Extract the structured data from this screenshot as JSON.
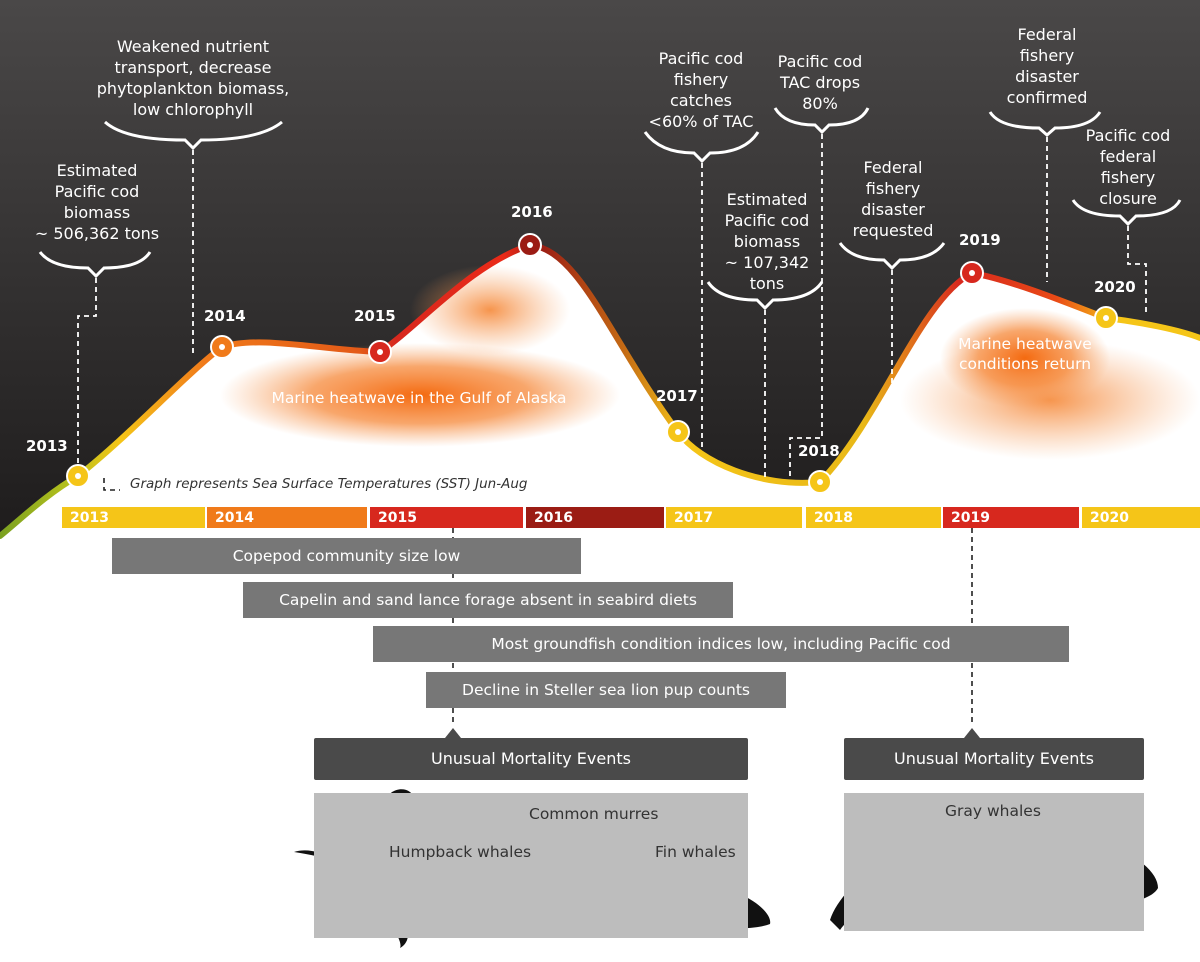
{
  "annotations": {
    "cod_biomass_2013": [
      "Estimated",
      "Pacific cod",
      "biomass",
      "~ 506,362 tons"
    ],
    "nutrient": [
      "Weakened nutrient",
      "transport, decrease",
      "phytoplankton biomass,",
      "low chlorophyll"
    ],
    "catches": [
      "Pacific cod",
      "fishery",
      "catches",
      "<60% of TAC"
    ],
    "tac_drop": [
      "Pacific cod",
      "TAC drops",
      "80%"
    ],
    "cod_biomass_2017": [
      "Estimated",
      "Pacific cod",
      "biomass",
      "~ 107,342",
      "tons"
    ],
    "disaster_requested": [
      "Federal",
      "fishery",
      "disaster",
      "requested"
    ],
    "disaster_confirmed": [
      "Federal",
      "fishery",
      "disaster",
      "confirmed"
    ],
    "closure": [
      "Pacific cod",
      "federal",
      "fishery",
      "closure"
    ]
  },
  "sst_points": [
    {
      "year": "2013",
      "color": "#f5c518"
    },
    {
      "year": "2014",
      "color": "#f07a1a"
    },
    {
      "year": "2015",
      "color": "#d7281e"
    },
    {
      "year": "2016",
      "color": "#9b1c14"
    },
    {
      "year": "2017",
      "color": "#f5c518"
    },
    {
      "year": "2018",
      "color": "#f5c518"
    },
    {
      "year": "2019",
      "color": "#d7281e"
    },
    {
      "year": "2020",
      "color": "#f5c518"
    }
  ],
  "heatwave": {
    "gulf": "Marine heatwave in the Gulf of Alaska",
    "return": [
      "Marine heatwave",
      "conditions return"
    ]
  },
  "graph_note": "Graph represents Sea Surface Temperatures (SST) Jun-Aug",
  "timeline": [
    {
      "year": "2013",
      "color": "#f5c518"
    },
    {
      "year": "2014",
      "color": "#f07a1a"
    },
    {
      "year": "2015",
      "color": "#d7281e"
    },
    {
      "year": "2016",
      "color": "#9b1c14"
    },
    {
      "year": "2017",
      "color": "#f5c518"
    },
    {
      "year": "2018",
      "color": "#f5c518"
    },
    {
      "year": "2019",
      "color": "#d7281e"
    },
    {
      "year": "2020",
      "color": "#f5c518"
    }
  ],
  "impacts": [
    "Copepod community size low",
    "Capelin and sand lance forage absent in seabird diets",
    "Most groundfish condition indices low, including Pacific cod",
    "Decline in Steller sea lion pup counts"
  ],
  "mortality_events": {
    "first": {
      "title": "Unusual Mortality Events",
      "species": [
        "Common murres",
        "Humpback whales",
        "Fin whales"
      ]
    },
    "second": {
      "title": "Unusual Mortality Events",
      "species": [
        "Gray whales"
      ]
    }
  },
  "colors": {
    "background_dark": "#2e2c2c",
    "cool": "#f5c518",
    "warm": "#f07a1a",
    "hot": "#d7281e",
    "very_hot": "#9b1c14",
    "bar": "#777777",
    "event_header": "#4a4a4a",
    "species_box": "#bdbdbd"
  }
}
